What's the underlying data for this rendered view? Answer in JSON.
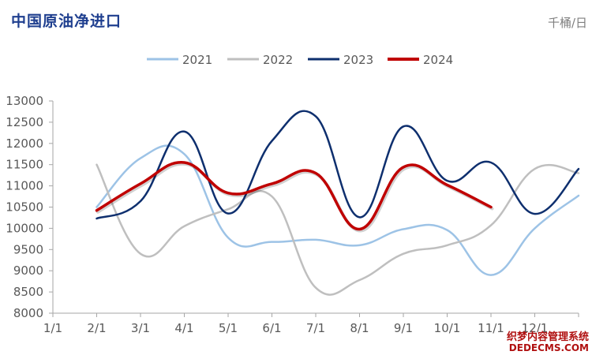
{
  "header": {
    "title": "中国原油净进口",
    "unit": "千桶/日"
  },
  "watermark": {
    "line1": "织梦内容管理系统",
    "line2": "DEDECMS.COM"
  },
  "colors": {
    "title": "#1f3f8f",
    "2021": "#9dc3e6",
    "2022": "#bfbfbf",
    "2023": "#0e2f6e",
    "2024": "#c00000",
    "axis": "#a6a6a6"
  },
  "chart_data": {
    "type": "line",
    "title": "中国原油净进口",
    "unit": "千桶/日",
    "legend_position": "top",
    "grid": false,
    "x_labels": [
      "1/1",
      "2/1",
      "3/1",
      "4/1",
      "5/1",
      "6/1",
      "7/1",
      "8/1",
      "9/1",
      "10/1",
      "11/1",
      "12/1",
      ""
    ],
    "y_ticks": [
      "8000",
      "8500",
      "9000",
      "9500",
      "10000",
      "10500",
      "11000",
      "11500",
      "12000",
      "12500",
      "13000"
    ],
    "ylim": [
      8000,
      13000
    ],
    "series": [
      {
        "name": "2021",
        "x": [
          2,
          3,
          4,
          5,
          6,
          7,
          8,
          9,
          10,
          11,
          12,
          13
        ],
        "values": [
          10500,
          11650,
          11750,
          9780,
          9680,
          9730,
          9600,
          9980,
          9960,
          8900,
          10000,
          10770
        ]
      },
      {
        "name": "2022",
        "x": [
          2,
          3,
          4,
          5,
          6,
          7,
          8,
          9,
          10,
          11,
          12,
          13
        ],
        "values": [
          11500,
          9400,
          10050,
          10450,
          10750,
          8600,
          8780,
          9400,
          9600,
          10070,
          11400,
          11300
        ]
      },
      {
        "name": "2023",
        "x": [
          2,
          3,
          4,
          5,
          6,
          7,
          8,
          9,
          10,
          11,
          12,
          13
        ],
        "values": [
          10230,
          10640,
          12280,
          10350,
          12060,
          12640,
          10260,
          12400,
          11120,
          11550,
          10340,
          11400
        ]
      },
      {
        "name": "2024",
        "x": [
          2,
          3,
          4,
          5,
          6,
          7,
          8,
          9,
          10,
          11
        ],
        "values": [
          10420,
          11050,
          11550,
          10830,
          11050,
          11300,
          9980,
          11440,
          11020,
          10500
        ]
      }
    ]
  }
}
